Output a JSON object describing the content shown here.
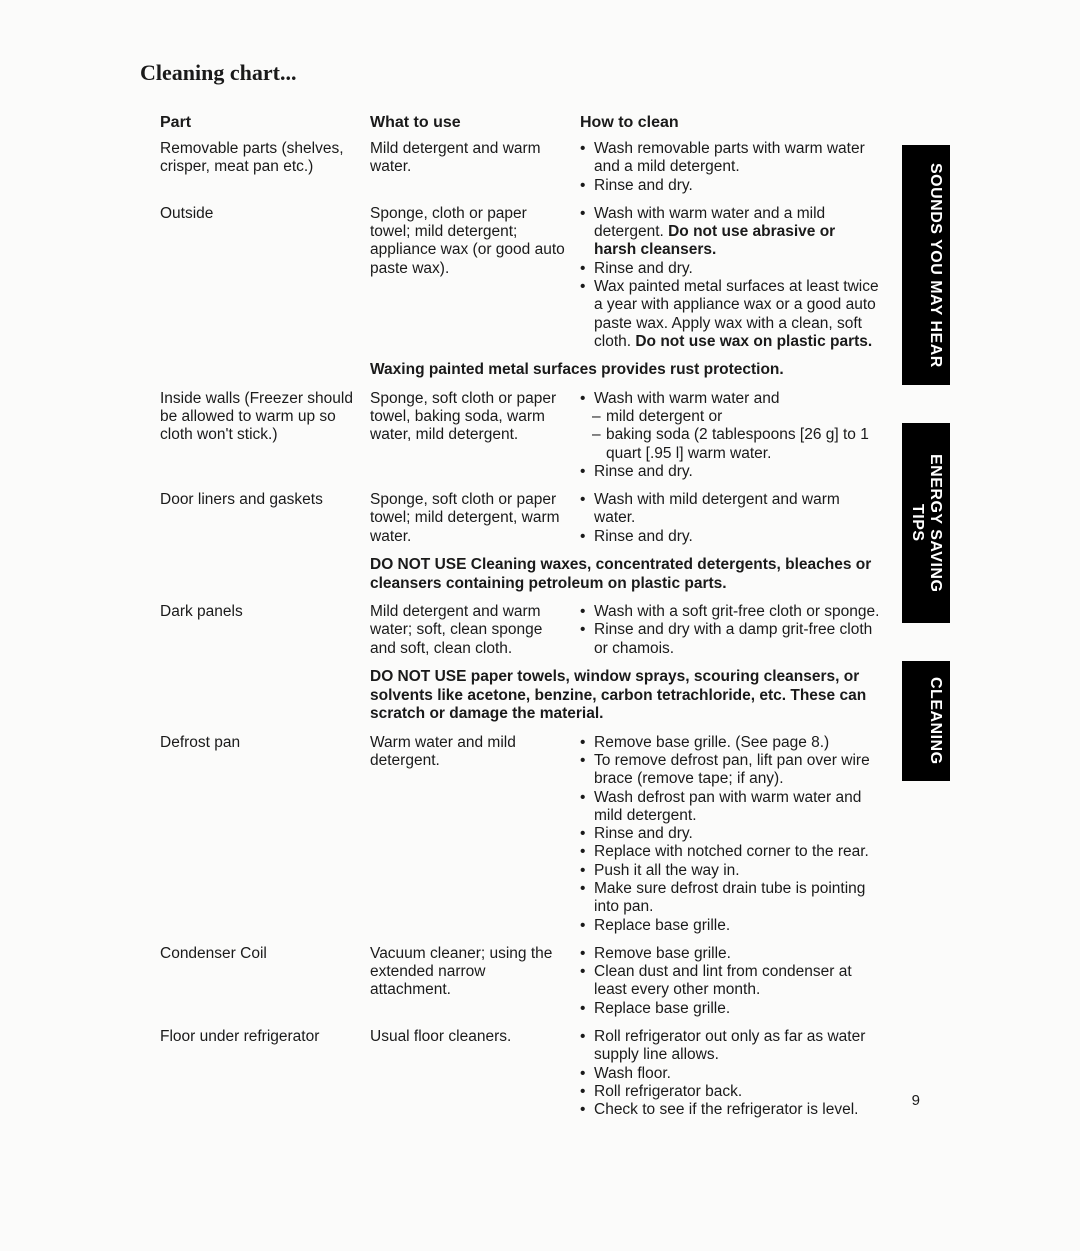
{
  "title": "Cleaning chart...",
  "headers": {
    "part": "Part",
    "use": "What to use",
    "how": "How to clean"
  },
  "tabs": [
    "SOUNDS YOU MAY HEAR",
    "ENERGY SAVING TIPS",
    "CLEANING"
  ],
  "page_number": "9",
  "rows": [
    {
      "part": "Removable parts (shelves, crisper, meat pan etc.)",
      "use": "Mild detergent and warm water.",
      "how": [
        {
          "t": "Wash removable parts with warm water and a mild detergent."
        },
        {
          "t": "Rinse and dry."
        }
      ]
    },
    {
      "part": "Outside",
      "use": "Sponge, cloth or paper towel; mild detergent; appliance wax (or good auto paste wax).",
      "how": [
        {
          "html": "Wash with warm water and a mild detergent. <b>Do not use abrasive or harsh cleansers.</b>"
        },
        {
          "t": "Rinse and dry."
        },
        {
          "html": "Wax painted metal surfaces at least twice a year with appliance wax or a good auto paste wax. Apply wax with a clean, soft cloth. <b>Do not use wax on plastic parts.</b>"
        }
      ],
      "note": "Waxing painted metal surfaces provides rust protection."
    },
    {
      "part": "Inside walls (Freezer should be allowed to warm up so cloth won't stick.)",
      "use": "Sponge, soft cloth or paper towel, baking soda, warm water, mild detergent.",
      "how": [
        {
          "t": "Wash with warm water and"
        },
        {
          "t": "mild detergent or",
          "indent": true
        },
        {
          "t": "baking soda (2 tablespoons [26 g] to 1 quart [.95 l] warm water.",
          "indent": true
        },
        {
          "t": "Rinse and dry."
        }
      ]
    },
    {
      "part": "Door liners and gaskets",
      "use": "Sponge, soft cloth or paper towel; mild detergent, warm water.",
      "how": [
        {
          "t": "Wash with mild detergent and warm water."
        },
        {
          "t": "Rinse and dry."
        }
      ],
      "note": "DO NOT USE Cleaning waxes, concentrated detergents, bleaches or cleansers containing petroleum on plastic parts."
    },
    {
      "part": "Dark panels",
      "use": "Mild detergent and warm water; soft, clean sponge and soft, clean cloth.",
      "how": [
        {
          "t": "Wash with a soft grit-free cloth or sponge."
        },
        {
          "t": "Rinse and dry with a damp grit-free cloth or chamois."
        }
      ],
      "note": "DO NOT USE paper towels, window sprays, scouring cleansers, or solvents like acetone, benzine, carbon tetrachloride, etc. These can scratch or damage the material."
    },
    {
      "part": "Defrost pan",
      "use": "Warm water and mild detergent.",
      "how": [
        {
          "t": "Remove base grille. (See page 8.)"
        },
        {
          "t": "To remove defrost pan, lift pan over wire brace (remove tape; if any)."
        },
        {
          "t": "Wash defrost pan with warm water and mild detergent."
        },
        {
          "t": "Rinse and dry."
        },
        {
          "t": "Replace with notched corner to the rear."
        },
        {
          "t": "Push it all the way in."
        },
        {
          "t": "Make sure defrost drain tube is pointing into pan."
        },
        {
          "t": "Replace base grille."
        }
      ]
    },
    {
      "part": "Condenser Coil",
      "use": "Vacuum cleaner; using the extended narrow attachment.",
      "how": [
        {
          "t": "Remove base grille."
        },
        {
          "t": "Clean dust and lint from condenser at least every other month."
        },
        {
          "t": "Replace base grille."
        }
      ]
    },
    {
      "part": "Floor under refrigerator",
      "use": "Usual floor cleaners.",
      "how": [
        {
          "t": "Roll refrigerator out only as far as water supply line allows."
        },
        {
          "t": "Wash floor."
        },
        {
          "t": "Roll refrigerator back."
        },
        {
          "t": "Check to see if the refrigerator is level."
        }
      ]
    }
  ]
}
